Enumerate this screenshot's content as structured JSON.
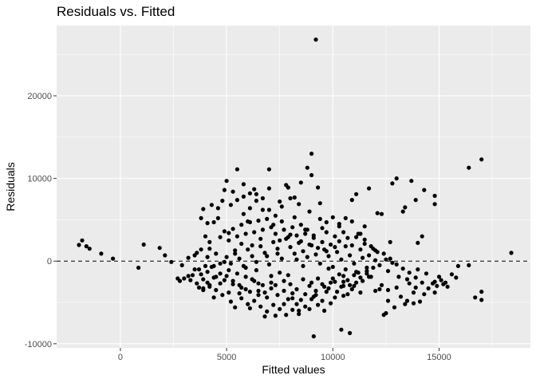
{
  "chart_data": {
    "type": "scatter",
    "title": "Residuals vs. Fitted",
    "xlabel": "Fitted values",
    "ylabel": "Residuals",
    "xlim": [
      -3000,
      19300
    ],
    "ylim": [
      -10500,
      28500
    ],
    "x_ticks": [
      0,
      5000,
      10000,
      15000
    ],
    "x_tick_labels": [
      "0",
      "5000",
      "10000",
      "15000"
    ],
    "x_minor_ticks": [
      2500,
      7500,
      12500,
      17500
    ],
    "y_ticks": [
      -10000,
      0,
      10000,
      20000
    ],
    "y_tick_labels": [
      "-10000",
      "0",
      "10000",
      "20000"
    ],
    "y_minor_ticks": [
      -5000,
      5000,
      15000,
      25000
    ],
    "reference_line": {
      "y": 0,
      "style": "dashed"
    },
    "grid": true,
    "theme": "ggplot2 grey",
    "colors": {
      "panel": "#ebebeb",
      "grid": "#ffffff",
      "point": "#000000"
    },
    "points": [
      [
        -1950,
        1950
      ],
      [
        -1800,
        2500
      ],
      [
        -1600,
        1800
      ],
      [
        -1450,
        1500
      ],
      [
        -900,
        900
      ],
      [
        -350,
        300
      ],
      [
        850,
        -800
      ],
      [
        1100,
        2000
      ],
      [
        1850,
        1600
      ],
      [
        2100,
        700
      ],
      [
        2400,
        -100
      ],
      [
        2700,
        -2100
      ],
      [
        2800,
        -2400
      ],
      [
        3200,
        -1800
      ],
      [
        3400,
        -1700
      ],
      [
        3500,
        700
      ],
      [
        3600,
        1000
      ],
      [
        3700,
        -3200
      ],
      [
        3900,
        -3500
      ],
      [
        4100,
        -2600
      ],
      [
        9200,
        26800
      ],
      [
        9000,
        13000
      ],
      [
        17000,
        12300
      ],
      [
        16400,
        11300
      ],
      [
        18400,
        1000
      ],
      [
        17000,
        -3700
      ],
      [
        17000,
        -4700
      ],
      [
        16700,
        -4400
      ],
      [
        16400,
        -500
      ],
      [
        15900,
        -600
      ],
      [
        15600,
        -1600
      ],
      [
        15200,
        -2800
      ],
      [
        14900,
        -3000
      ],
      [
        14800,
        7900
      ],
      [
        14800,
        6900
      ],
      [
        14800,
        -2500
      ],
      [
        14700,
        -2700
      ],
      [
        14300,
        8600
      ],
      [
        14300,
        -4000
      ],
      [
        14200,
        3000
      ],
      [
        14000,
        2200
      ],
      [
        14000,
        -1000
      ],
      [
        13900,
        7400
      ],
      [
        13800,
        -3800
      ],
      [
        13700,
        9700
      ],
      [
        13600,
        -2700
      ],
      [
        13400,
        6500
      ],
      [
        13400,
        -5200
      ],
      [
        13300,
        6000
      ],
      [
        13000,
        10000
      ],
      [
        13000,
        -3200
      ],
      [
        12800,
        9400
      ],
      [
        12700,
        2300
      ],
      [
        12600,
        -4800
      ],
      [
        12500,
        -6300
      ],
      [
        12400,
        -6500
      ],
      [
        12300,
        5700
      ],
      [
        12100,
        5800
      ],
      [
        12000,
        1300
      ],
      [
        11900,
        1500
      ],
      [
        11700,
        8800
      ],
      [
        11600,
        -1500
      ],
      [
        11500,
        4200
      ],
      [
        11300,
        3300
      ],
      [
        11100,
        8100
      ],
      [
        11000,
        -3000
      ],
      [
        10900,
        7400
      ],
      [
        10800,
        -8700
      ],
      [
        10600,
        1800
      ],
      [
        10500,
        -3000
      ],
      [
        10500,
        -1800
      ],
      [
        10400,
        -8300
      ],
      [
        10300,
        4500
      ],
      [
        10100,
        1700
      ],
      [
        10000,
        -2100
      ],
      [
        9800,
        -900
      ],
      [
        9700,
        3500
      ],
      [
        9600,
        -3100
      ],
      [
        9500,
        4000
      ],
      [
        9300,
        8900
      ],
      [
        9200,
        -4100
      ],
      [
        9100,
        -9100
      ],
      [
        9000,
        10400
      ],
      [
        9000,
        -2600
      ],
      [
        8800,
        11300
      ],
      [
        8700,
        3800
      ],
      [
        8600,
        -600
      ],
      [
        8500,
        9500
      ],
      [
        8400,
        -6000
      ],
      [
        8300,
        200
      ],
      [
        8200,
        7700
      ],
      [
        8100,
        -4500
      ],
      [
        8000,
        3200
      ],
      [
        7900,
        -1700
      ],
      [
        7800,
        9200
      ],
      [
        7700,
        -5200
      ],
      [
        7500,
        7200
      ],
      [
        7400,
        900
      ],
      [
        7300,
        -6600
      ],
      [
        7200,
        4400
      ],
      [
        7100,
        -2600
      ],
      [
        7000,
        11100
      ],
      [
        6900,
        600
      ],
      [
        6800,
        -6700
      ],
      [
        6700,
        6200
      ],
      [
        6600,
        2700
      ],
      [
        6500,
        -3600
      ],
      [
        6400,
        -100
      ],
      [
        6300,
        8700
      ],
      [
        6200,
        1900
      ],
      [
        6100,
        -5700
      ],
      [
        6000,
        4800
      ],
      [
        5900,
        -800
      ],
      [
        5800,
        5700
      ],
      [
        5700,
        2100
      ],
      [
        5600,
        -3900
      ],
      [
        5500,
        11100
      ],
      [
        5400,
        1300
      ],
      [
        5300,
        8400
      ],
      [
        5200,
        -4900
      ],
      [
        5100,
        3400
      ],
      [
        5000,
        9700
      ],
      [
        4900,
        -100
      ],
      [
        4800,
        7300
      ],
      [
        4700,
        -2700
      ],
      [
        4600,
        5200
      ],
      [
        4500,
        900
      ],
      [
        4400,
        -4400
      ],
      [
        4300,
        6800
      ],
      [
        4200,
        2300
      ],
      [
        4100,
        4600
      ],
      [
        4000,
        -600
      ],
      [
        3900,
        6300
      ],
      [
        3800,
        5200
      ],
      [
        3800,
        1400
      ],
      [
        4200,
        -2900
      ],
      [
        4400,
        4700
      ],
      [
        4600,
        6400
      ],
      [
        4900,
        8600
      ],
      [
        5200,
        6800
      ],
      [
        5500,
        7400
      ],
      [
        5800,
        7800
      ],
      [
        6100,
        8200
      ],
      [
        6400,
        7300
      ],
      [
        6700,
        7600
      ],
      [
        7000,
        6200
      ],
      [
        7300,
        5500
      ],
      [
        7600,
        4800
      ],
      [
        7900,
        8900
      ],
      [
        8200,
        5300
      ],
      [
        8500,
        4400
      ],
      [
        8800,
        3800
      ],
      [
        9100,
        3100
      ],
      [
        9400,
        5100
      ],
      [
        9700,
        4700
      ],
      [
        10000,
        5300
      ],
      [
        10300,
        4200
      ],
      [
        10600,
        5200
      ],
      [
        10900,
        4800
      ],
      [
        11200,
        3300
      ],
      [
        11500,
        2600
      ],
      [
        11800,
        1800
      ],
      [
        12100,
        1100
      ],
      [
        12400,
        900
      ],
      [
        12700,
        300
      ],
      [
        13000,
        -400
      ],
      [
        13300,
        -900
      ],
      [
        13600,
        -1400
      ],
      [
        13900,
        -2000
      ],
      [
        14200,
        -2600
      ],
      [
        14500,
        -3300
      ],
      [
        14800,
        -3800
      ],
      [
        15100,
        -2300
      ],
      [
        15400,
        -3100
      ],
      [
        14100,
        -4900
      ],
      [
        13800,
        -5100
      ],
      [
        13500,
        -4800
      ],
      [
        13200,
        -4300
      ],
      [
        12900,
        -5600
      ],
      [
        12600,
        -3500
      ],
      [
        12300,
        -2900
      ],
      [
        12000,
        -3600
      ],
      [
        11700,
        -1900
      ],
      [
        11400,
        -2400
      ],
      [
        11100,
        -1300
      ],
      [
        10800,
        -2900
      ],
      [
        10500,
        -4200
      ],
      [
        10200,
        -3700
      ],
      [
        9900,
        -5100
      ],
      [
        9600,
        -6000
      ],
      [
        9300,
        -5300
      ],
      [
        9000,
        -4600
      ],
      [
        8700,
        -5500
      ],
      [
        8400,
        -6400
      ],
      [
        8100,
        -5900
      ],
      [
        7800,
        -6500
      ],
      [
        7500,
        -5800
      ],
      [
        7200,
        -5300
      ],
      [
        6900,
        -6100
      ],
      [
        6600,
        -5500
      ],
      [
        6300,
        -4800
      ],
      [
        6000,
        -5200
      ],
      [
        5700,
        -4500
      ],
      [
        5400,
        -5600
      ],
      [
        5100,
        -3800
      ],
      [
        4800,
        -4100
      ],
      [
        4500,
        -3500
      ],
      [
        4200,
        -3100
      ],
      [
        3900,
        -3300
      ],
      [
        3600,
        -2700
      ],
      [
        3300,
        -2300
      ],
      [
        3000,
        -2100
      ],
      [
        2900,
        -500
      ],
      [
        3200,
        400
      ],
      [
        3500,
        -1000
      ],
      [
        3800,
        -1600
      ],
      [
        4100,
        -1300
      ],
      [
        4400,
        -2000
      ],
      [
        4700,
        -1500
      ],
      [
        5000,
        -1800
      ],
      [
        5300,
        -2400
      ],
      [
        5600,
        -2900
      ],
      [
        5900,
        -3400
      ],
      [
        6200,
        -2200
      ],
      [
        6500,
        -2700
      ],
      [
        6800,
        -3800
      ],
      [
        7100,
        -3300
      ],
      [
        7400,
        -4100
      ],
      [
        7700,
        -3600
      ],
      [
        8000,
        -2800
      ],
      [
        8300,
        -3400
      ],
      [
        8600,
        -2200
      ],
      [
        8900,
        -3000
      ],
      [
        9200,
        -3600
      ],
      [
        9500,
        -2800
      ],
      [
        9800,
        -3300
      ],
      [
        10100,
        -2500
      ],
      [
        10400,
        -3100
      ],
      [
        10700,
        -2300
      ],
      [
        11000,
        -1700
      ],
      [
        11300,
        -2000
      ],
      [
        11600,
        -1200
      ],
      [
        11900,
        -800
      ],
      [
        12200,
        -500
      ],
      [
        12500,
        200
      ],
      [
        12800,
        -200
      ],
      [
        5000,
        500
      ],
      [
        5200,
        -300
      ],
      [
        5400,
        900
      ],
      [
        5600,
        300
      ],
      [
        5800,
        -600
      ],
      [
        6000,
        1400
      ],
      [
        6200,
        600
      ],
      [
        6400,
        -1100
      ],
      [
        6600,
        1800
      ],
      [
        6800,
        1000
      ],
      [
        7000,
        -400
      ],
      [
        7200,
        2300
      ],
      [
        7400,
        1500
      ],
      [
        7600,
        300
      ],
      [
        7800,
        2700
      ],
      [
        8000,
        1700
      ],
      [
        8200,
        900
      ],
      [
        8400,
        2200
      ],
      [
        8600,
        1200
      ],
      [
        8800,
        500
      ],
      [
        9000,
        1900
      ],
      [
        9200,
        800
      ],
      [
        9400,
        -300
      ],
      [
        9600,
        1400
      ],
      [
        9800,
        600
      ],
      [
        10000,
        -700
      ],
      [
        10200,
        1100
      ],
      [
        10400,
        200
      ],
      [
        10600,
        -1000
      ],
      [
        10800,
        700
      ],
      [
        11000,
        -300
      ],
      [
        11200,
        -1400
      ],
      [
        11400,
        400
      ],
      [
        11600,
        -800
      ],
      [
        11800,
        -1900
      ],
      [
        12000,
        100
      ],
      [
        4700,
        2900
      ],
      [
        4900,
        3600
      ],
      [
        5100,
        2500
      ],
      [
        5300,
        3900
      ],
      [
        5500,
        3000
      ],
      [
        5700,
        4400
      ],
      [
        5900,
        3300
      ],
      [
        6100,
        4700
      ],
      [
        6300,
        3500
      ],
      [
        6500,
        4900
      ],
      [
        6700,
        3800
      ],
      [
        6900,
        5100
      ],
      [
        7100,
        4100
      ],
      [
        7300,
        3300
      ],
      [
        7500,
        2500
      ],
      [
        7700,
        3800
      ],
      [
        7900,
        2900
      ],
      [
        8100,
        4100
      ],
      [
        8300,
        3100
      ],
      [
        8500,
        2400
      ],
      [
        8700,
        3300
      ],
      [
        8900,
        2000
      ],
      [
        9100,
        2800
      ],
      [
        9300,
        1600
      ],
      [
        9500,
        2300
      ],
      [
        9700,
        1200
      ],
      [
        9900,
        2000
      ],
      [
        10100,
        3000
      ],
      [
        10300,
        2400
      ],
      [
        10500,
        3500
      ],
      [
        10700,
        2800
      ],
      [
        10900,
        1900
      ],
      [
        11100,
        2900
      ],
      [
        11300,
        1400
      ],
      [
        11500,
        2100
      ],
      [
        11700,
        700
      ],
      [
        4300,
        -700
      ],
      [
        4500,
        -1900
      ],
      [
        4700,
        -300
      ],
      [
        4900,
        -2300
      ],
      [
        5100,
        -1100
      ],
      [
        5300,
        -2800
      ],
      [
        5500,
        -1500
      ],
      [
        5700,
        -3200
      ],
      [
        5900,
        -1900
      ],
      [
        6100,
        -3700
      ],
      [
        6300,
        -2400
      ],
      [
        6500,
        -4100
      ],
      [
        6700,
        -2900
      ],
      [
        6900,
        -4400
      ],
      [
        7100,
        -1800
      ],
      [
        7300,
        -2900
      ],
      [
        7500,
        -1400
      ],
      [
        7700,
        -2400
      ],
      [
        7900,
        -4600
      ],
      [
        8100,
        -3900
      ],
      [
        8300,
        -5200
      ],
      [
        8500,
        -4700
      ],
      [
        8700,
        -4000
      ],
      [
        8900,
        -5800
      ],
      [
        9100,
        -4300
      ],
      [
        9300,
        -2100
      ],
      [
        9500,
        -4800
      ],
      [
        9700,
        -3700
      ],
      [
        9900,
        -2600
      ],
      [
        10100,
        -4400
      ],
      [
        10300,
        -1600
      ],
      [
        10500,
        -2500
      ],
      [
        10700,
        -4000
      ],
      [
        10900,
        -3400
      ],
      [
        11100,
        -2600
      ],
      [
        11300,
        -3800
      ],
      [
        4000,
        3000
      ],
      [
        4200,
        1500
      ],
      [
        4400,
        -600
      ],
      [
        5800,
        9300
      ],
      [
        6100,
        6400
      ],
      [
        6400,
        8100
      ],
      [
        7000,
        8800
      ],
      [
        7600,
        6600
      ],
      [
        8000,
        7600
      ],
      [
        8400,
        6900
      ],
      [
        8900,
        6000
      ],
      [
        9400,
        7000
      ],
      [
        3700,
        -1000
      ],
      [
        3900,
        -2200
      ],
      [
        4100,
        500
      ],
      [
        12200,
        -3400
      ],
      [
        12600,
        -1200
      ],
      [
        13100,
        -1900
      ],
      [
        13500,
        -2200
      ],
      [
        13900,
        -3200
      ],
      [
        14400,
        -1500
      ],
      [
        15300,
        -2600
      ],
      [
        15000,
        -1900
      ],
      [
        15800,
        -2000
      ]
    ]
  }
}
